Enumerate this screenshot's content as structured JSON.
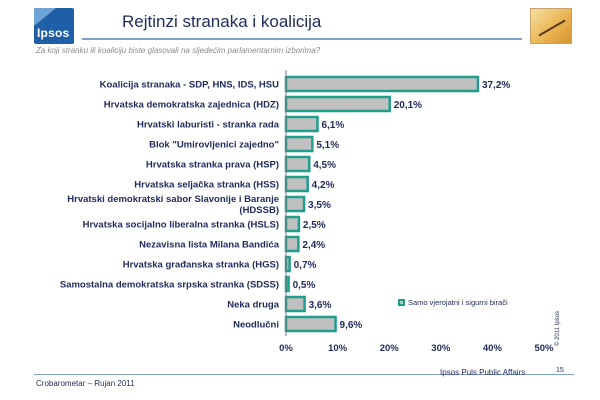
{
  "header": {
    "logo_text": "Ipsos",
    "title": "Rejtinzi stranaka i koalicija",
    "subtitle": "Za koji stranku ili koaliciju biste glasovali na sljedećim parlamentarnim izborima?"
  },
  "chart_data": {
    "type": "bar",
    "orientation": "horizontal",
    "categories": [
      "Koalicija stranaka - SDP, HNS, IDS, HSU",
      "Hrvatska demokratska zajednica (HDZ)",
      "Hrvatski laburisti - stranka rada",
      "Blok \"Umirovljenici zajedno\"",
      "Hrvatska stranka prava (HSP)",
      "Hrvatska seljačka stranka (HSS)",
      "Hrvatski demokratski sabor Slavonije i Baranje (HDSSB)",
      "Hrvatska socijalno liberalna stranka (HSLS)",
      "Nezavisna lista Milana Bandića",
      "Hrvatska građanska stranka (HGS)",
      "Samostalna demokratska srpska stranka (SDSS)",
      "Neka druga",
      "Neodlučni"
    ],
    "category_lines": [
      [
        "Koalicija stranaka - SDP, HNS, IDS, HSU"
      ],
      [
        "Hrvatska demokratska zajednica (HDZ)"
      ],
      [
        "Hrvatski laburisti - stranka rada"
      ],
      [
        "Blok \"Umirovljenici zajedno\""
      ],
      [
        "Hrvatska stranka prava (HSP)"
      ],
      [
        "Hrvatska seljačka stranka (HSS)"
      ],
      [
        "Hrvatski demokratski sabor Slavonije i Baranje",
        "(HDSSB)"
      ],
      [
        "Hrvatska socijalno liberalna stranka (HSLS)"
      ],
      [
        "Nezavisna lista Milana Bandića"
      ],
      [
        "Hrvatska građanska stranka (HGS)"
      ],
      [
        "Samostalna demokratska srpska stranka (SDSS)"
      ],
      [
        "Neka druga"
      ],
      [
        "Neodlučni"
      ]
    ],
    "values": [
      37.2,
      20.1,
      6.1,
      5.1,
      4.5,
      4.2,
      3.5,
      2.5,
      2.4,
      0.7,
      0.5,
      3.6,
      9.6
    ],
    "value_labels": [
      "37,2%",
      "20,1%",
      "6,1%",
      "5,1%",
      "4,5%",
      "4,2%",
      "3,5%",
      "2,5%",
      "2,4%",
      "0,7%",
      "0,5%",
      "3,6%",
      "9,6%"
    ],
    "xlim": [
      0,
      50
    ],
    "xticks": [
      0,
      10,
      20,
      30,
      40,
      50
    ],
    "xtick_labels": [
      "0%",
      "10%",
      "20%",
      "30%",
      "40%",
      "50%"
    ],
    "legend": {
      "label": "Samo vjerojatni i sigurni birači",
      "placement": "bottom-right"
    },
    "grid": false,
    "colors": {
      "fill": "#c0c0c0",
      "border": "#1f9e8e",
      "text": "#1f2a5c"
    }
  },
  "copyright": "© 2011 Ipsos",
  "footer": {
    "left": "Crobarometar –  Rujan 2011",
    "right": "Ipsos Puls Public Affairs",
    "page": "15"
  }
}
